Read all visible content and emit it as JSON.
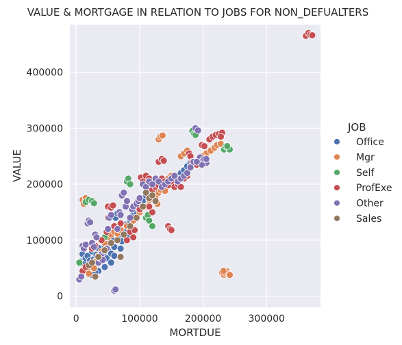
{
  "chart_data": {
    "type": "scatter",
    "title": "VALUE & MORTGAGE IN RELATION TO JOBS FOR NON_DEFUALTERS",
    "xlabel": "MORTDUE",
    "ylabel": "VALUE",
    "xlim": [
      -10000,
      385000
    ],
    "ylim": [
      -20000,
      485000
    ],
    "xticks": [
      0,
      100000,
      200000,
      300000
    ],
    "yticks": [
      0,
      100000,
      200000,
      300000,
      400000
    ],
    "grid": true,
    "legend": {
      "title": "JOB",
      "placement": "right"
    },
    "colors": {
      "Office": "#4c72b0",
      "Mgr": "#dd8452",
      "Self": "#55a868",
      "ProfExe": "#c44e52",
      "Other": "#8172b3",
      "Sales": "#937860"
    },
    "series": [
      {
        "name": "Office",
        "points": [
          [
            8000,
            62000
          ],
          [
            10000,
            75000
          ],
          [
            12000,
            58000
          ],
          [
            15000,
            68000
          ],
          [
            18000,
            72000
          ],
          [
            20000,
            55000
          ],
          [
            22000,
            64000
          ],
          [
            25000,
            80000
          ],
          [
            28000,
            66000
          ],
          [
            30000,
            58000
          ],
          [
            32000,
            74000
          ],
          [
            35000,
            86000
          ],
          [
            38000,
            62000
          ],
          [
            40000,
            70000
          ],
          [
            42000,
            78000
          ],
          [
            45000,
            90000
          ],
          [
            48000,
            68000
          ],
          [
            50000,
            82000
          ],
          [
            52000,
            95000
          ],
          [
            55000,
            76000
          ],
          [
            58000,
            100000
          ],
          [
            60000,
            88000
          ],
          [
            62000,
            140000
          ],
          [
            65000,
            148000
          ],
          [
            68000,
            110000
          ],
          [
            70000,
            120000
          ],
          [
            72000,
            98000
          ],
          [
            75000,
            115000
          ],
          [
            78000,
            128000
          ],
          [
            80000,
            105000
          ],
          [
            85000,
            132000
          ],
          [
            90000,
            145000
          ],
          [
            95000,
            150000
          ],
          [
            100000,
            165000
          ],
          [
            105000,
            170000
          ],
          [
            110000,
            180000
          ],
          [
            115000,
            188000
          ],
          [
            120000,
            195000
          ],
          [
            125000,
            200000
          ],
          [
            130000,
            205000
          ],
          [
            140000,
            198000
          ],
          [
            150000,
            205000
          ],
          [
            160000,
            210000
          ],
          [
            165000,
            220000
          ],
          [
            170000,
            225000
          ],
          [
            175000,
            232000
          ],
          [
            180000,
            238000
          ],
          [
            35000,
            45000
          ],
          [
            45000,
            52000
          ],
          [
            55000,
            60000
          ],
          [
            25000,
            38000
          ],
          [
            30000,
            42000
          ],
          [
            60000,
            72000
          ],
          [
            70000,
            85000
          ]
        ]
      },
      {
        "name": "Mgr",
        "points": [
          [
            10000,
            172000
          ],
          [
            12000,
            165000
          ],
          [
            15000,
            175000
          ],
          [
            18000,
            45000
          ],
          [
            20000,
            40000
          ],
          [
            28000,
            50000
          ],
          [
            30000,
            62000
          ],
          [
            35000,
            72000
          ],
          [
            40000,
            80000
          ],
          [
            45000,
            95000
          ],
          [
            50000,
            105000
          ],
          [
            55000,
            110000
          ],
          [
            60000,
            115000
          ],
          [
            65000,
            112000
          ],
          [
            70000,
            118000
          ],
          [
            80000,
            125000
          ],
          [
            90000,
            135000
          ],
          [
            100000,
            150000
          ],
          [
            110000,
            160000
          ],
          [
            115000,
            172000
          ],
          [
            120000,
            180000
          ],
          [
            125000,
            175000
          ],
          [
            128000,
            165000
          ],
          [
            130000,
            185000
          ],
          [
            133000,
            190000
          ],
          [
            135000,
            195000
          ],
          [
            138000,
            200000
          ],
          [
            140000,
            188000
          ],
          [
            143000,
            205000
          ],
          [
            145000,
            210000
          ],
          [
            150000,
            215000
          ],
          [
            155000,
            212000
          ],
          [
            160000,
            208000
          ],
          [
            130000,
            280000
          ],
          [
            133000,
            285000
          ],
          [
            136000,
            287000
          ],
          [
            165000,
            250000
          ],
          [
            170000,
            255000
          ],
          [
            175000,
            260000
          ],
          [
            230000,
            42000
          ],
          [
            233000,
            38000
          ],
          [
            236000,
            40000
          ],
          [
            238000,
            44000
          ],
          [
            240000,
            40000
          ],
          [
            232000,
            45000
          ],
          [
            242000,
            38000
          ],
          [
            205000,
            255000
          ],
          [
            212000,
            260000
          ],
          [
            218000,
            265000
          ],
          [
            222000,
            270000
          ],
          [
            228000,
            272000
          ],
          [
            198000,
            250000
          ]
        ]
      },
      {
        "name": "Self",
        "points": [
          [
            15000,
            168000
          ],
          [
            20000,
            172000
          ],
          [
            25000,
            170000
          ],
          [
            28000,
            166000
          ],
          [
            40000,
            100000
          ],
          [
            45000,
            105000
          ],
          [
            80000,
            205000
          ],
          [
            82000,
            210000
          ],
          [
            85000,
            200000
          ],
          [
            110000,
            140000
          ],
          [
            113000,
            145000
          ],
          [
            115000,
            135000
          ],
          [
            120000,
            125000
          ],
          [
            183000,
            295000
          ],
          [
            186000,
            290000
          ],
          [
            190000,
            292000
          ],
          [
            188000,
            288000
          ],
          [
            233000,
            262000
          ],
          [
            236000,
            268000
          ],
          [
            239000,
            265000
          ],
          [
            242000,
            262000
          ],
          [
            238000,
            268000
          ],
          [
            5000,
            60000
          ]
        ]
      },
      {
        "name": "ProfExe",
        "points": [
          [
            10000,
            45000
          ],
          [
            15000,
            52000
          ],
          [
            25000,
            85000
          ],
          [
            30000,
            90000
          ],
          [
            40000,
            100000
          ],
          [
            48000,
            115000
          ],
          [
            50000,
            160000
          ],
          [
            55000,
            158000
          ],
          [
            58000,
            162000
          ],
          [
            50000,
            140000
          ],
          [
            60000,
            125000
          ],
          [
            65000,
            120000
          ],
          [
            70000,
            130000
          ],
          [
            75000,
            110000
          ],
          [
            80000,
            100000
          ],
          [
            85000,
            115000
          ],
          [
            90000,
            105000
          ],
          [
            92000,
            118000
          ],
          [
            100000,
            155000
          ],
          [
            102000,
            212000
          ],
          [
            105000,
            205000
          ],
          [
            110000,
            215000
          ],
          [
            115000,
            210000
          ],
          [
            118000,
            200000
          ],
          [
            120000,
            190000
          ],
          [
            125000,
            195000
          ],
          [
            130000,
            198000
          ],
          [
            135000,
            210000
          ],
          [
            140000,
            205000
          ],
          [
            145000,
            198000
          ],
          [
            150000,
            205000
          ],
          [
            155000,
            195000
          ],
          [
            160000,
            200000
          ],
          [
            165000,
            195000
          ],
          [
            130000,
            240000
          ],
          [
            135000,
            245000
          ],
          [
            138000,
            242000
          ],
          [
            145000,
            125000
          ],
          [
            148000,
            120000
          ],
          [
            150000,
            118000
          ],
          [
            170000,
            210000
          ],
          [
            175000,
            215000
          ],
          [
            178000,
            255000
          ],
          [
            180000,
            250000
          ],
          [
            183000,
            240000
          ],
          [
            190000,
            235000
          ],
          [
            198000,
            270000
          ],
          [
            202000,
            268000
          ],
          [
            210000,
            280000
          ],
          [
            215000,
            285000
          ],
          [
            220000,
            288000
          ],
          [
            225000,
            290000
          ],
          [
            230000,
            292000
          ],
          [
            228000,
            285000
          ],
          [
            362000,
            465000
          ],
          [
            366000,
            470000
          ],
          [
            369000,
            467000
          ],
          [
            372000,
            466000
          ],
          [
            120000,
            150000
          ],
          [
            115000,
            160000
          ]
        ]
      },
      {
        "name": "Other",
        "points": [
          [
            5000,
            30000
          ],
          [
            8000,
            35000
          ],
          [
            10000,
            90000
          ],
          [
            12000,
            85000
          ],
          [
            15000,
            92000
          ],
          [
            18000,
            130000
          ],
          [
            20000,
            135000
          ],
          [
            22000,
            132000
          ],
          [
            25000,
            95000
          ],
          [
            28000,
            88000
          ],
          [
            30000,
            110000
          ],
          [
            32000,
            105000
          ],
          [
            35000,
            60000
          ],
          [
            38000,
            68000
          ],
          [
            40000,
            75000
          ],
          [
            42000,
            65000
          ],
          [
            45000,
            80000
          ],
          [
            48000,
            85000
          ],
          [
            50000,
            120000
          ],
          [
            52000,
            140000
          ],
          [
            55000,
            145000
          ],
          [
            60000,
            10000
          ],
          [
            62000,
            12000
          ],
          [
            65000,
            120000
          ],
          [
            68000,
            150000
          ],
          [
            70000,
            145000
          ],
          [
            72000,
            180000
          ],
          [
            75000,
            185000
          ],
          [
            78000,
            160000
          ],
          [
            80000,
            170000
          ],
          [
            85000,
            140000
          ],
          [
            88000,
            155000
          ],
          [
            90000,
            160000
          ],
          [
            95000,
            165000
          ],
          [
            98000,
            170000
          ],
          [
            100000,
            175000
          ],
          [
            105000,
            200000
          ],
          [
            110000,
            195000
          ],
          [
            115000,
            205000
          ],
          [
            120000,
            200000
          ],
          [
            125000,
            210000
          ],
          [
            130000,
            205000
          ],
          [
            135000,
            195000
          ],
          [
            140000,
            200000
          ],
          [
            145000,
            205000
          ],
          [
            150000,
            210000
          ],
          [
            155000,
            215000
          ],
          [
            160000,
            205000
          ],
          [
            165000,
            210000
          ],
          [
            170000,
            215000
          ],
          [
            175000,
            220000
          ],
          [
            180000,
            230000
          ],
          [
            185000,
            240000
          ],
          [
            188000,
            300000
          ],
          [
            192000,
            296000
          ],
          [
            195000,
            248000
          ],
          [
            200000,
            243000
          ],
          [
            205000,
            238000
          ],
          [
            198000,
            235000
          ],
          [
            202000,
            245000
          ],
          [
            190000,
            240000
          ],
          [
            205000,
            245000
          ]
        ]
      },
      {
        "name": "Sales",
        "points": [
          [
            20000,
            55000
          ],
          [
            25000,
            60000
          ],
          [
            35000,
            70000
          ],
          [
            45000,
            82000
          ],
          [
            55000,
            95000
          ],
          [
            65000,
            100000
          ],
          [
            75000,
            110000
          ],
          [
            85000,
            125000
          ],
          [
            95000,
            140000
          ],
          [
            105000,
            160000
          ],
          [
            110000,
            185000
          ],
          [
            115000,
            175000
          ],
          [
            120000,
            180000
          ],
          [
            125000,
            170000
          ],
          [
            70000,
            70000
          ],
          [
            30000,
            35000
          ]
        ]
      }
    ]
  }
}
